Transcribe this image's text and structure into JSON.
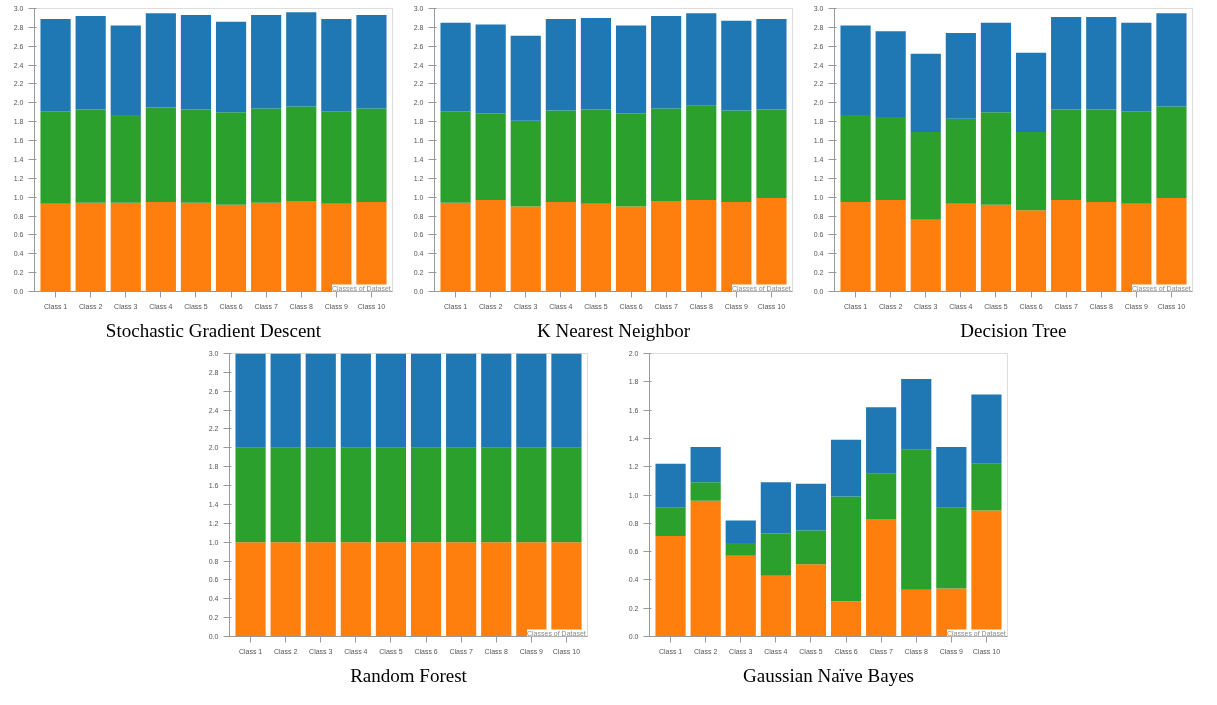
{
  "chart_data": [
    {
      "type": "bar",
      "title": "Stochastic Gradient Descent",
      "stacked": true,
      "categories": [
        "Class 1",
        "Class 2",
        "Class 3",
        "Class 4",
        "Class 5",
        "Class 6",
        "Class 7",
        "Class 8",
        "Class 9",
        "Class 10"
      ],
      "ylim": [
        0,
        3.0
      ],
      "yticks": [
        {
          "value": 0,
          "label": "0.0"
        },
        {
          "value": 0.2,
          "label": "0.2"
        },
        {
          "value": 0.4,
          "label": "0.4"
        },
        {
          "value": 0.6,
          "label": "0.6"
        },
        {
          "value": 0.8,
          "label": "0.8"
        },
        {
          "value": 1.0,
          "label": "1.0"
        },
        {
          "value": 1.2,
          "label": "1.2"
        },
        {
          "value": 1.4,
          "label": "1.4"
        },
        {
          "value": 1.6,
          "label": "1.6"
        },
        {
          "value": 1.8,
          "label": "1.8"
        },
        {
          "value": 2.0,
          "label": "2.0"
        },
        {
          "value": 2.2,
          "label": "2.2"
        },
        {
          "value": 2.4,
          "label": "2.4"
        },
        {
          "value": 2.6,
          "label": "2.6"
        },
        {
          "value": 2.8,
          "label": "2.8"
        },
        {
          "value": 3.0,
          "label": "3.0"
        }
      ],
      "annotations": [
        "Classes of Dataset"
      ],
      "series": [
        {
          "color": "#ff7f0e",
          "values": [
            0.93,
            0.94,
            0.94,
            0.95,
            0.94,
            0.92,
            0.94,
            0.96,
            0.93,
            0.95
          ]
        },
        {
          "color": "#2ca02c",
          "values": [
            0.98,
            0.99,
            0.93,
            1.0,
            0.99,
            0.98,
            1.0,
            1.0,
            0.98,
            0.99
          ]
        },
        {
          "color": "#1f77b4",
          "values": [
            0.98,
            0.99,
            0.95,
            1.0,
            1.0,
            0.96,
            0.99,
            1.0,
            0.98,
            0.99
          ]
        }
      ]
    },
    {
      "type": "bar",
      "title": "K Nearest Neighbor",
      "stacked": true,
      "categories": [
        "Class 1",
        "Class 2",
        "Class 3",
        "Class 4",
        "Class 5",
        "Class 6",
        "Class 7",
        "Class 8",
        "Class 9",
        "Class 10"
      ],
      "ylim": [
        0,
        3.0
      ],
      "yticks": [
        {
          "value": 0,
          "label": "0.0"
        },
        {
          "value": 0.2,
          "label": "0.2"
        },
        {
          "value": 0.4,
          "label": "0.4"
        },
        {
          "value": 0.6,
          "label": "0.6"
        },
        {
          "value": 0.8,
          "label": "0.8"
        },
        {
          "value": 1.0,
          "label": "1.0"
        },
        {
          "value": 1.2,
          "label": "1.2"
        },
        {
          "value": 1.4,
          "label": "1.4"
        },
        {
          "value": 1.6,
          "label": "1.6"
        },
        {
          "value": 1.8,
          "label": "1.8"
        },
        {
          "value": 2.0,
          "label": "2.0"
        },
        {
          "value": 2.2,
          "label": "2.2"
        },
        {
          "value": 2.4,
          "label": "2.4"
        },
        {
          "value": 2.6,
          "label": "2.6"
        },
        {
          "value": 2.8,
          "label": "2.8"
        },
        {
          "value": 3.0,
          "label": "3.0"
        }
      ],
      "annotations": [
        "Classes of Dataset"
      ],
      "series": [
        {
          "color": "#ff7f0e",
          "values": [
            0.94,
            0.97,
            0.9,
            0.95,
            0.93,
            0.9,
            0.96,
            0.97,
            0.95,
            0.99
          ]
        },
        {
          "color": "#2ca02c",
          "values": [
            0.97,
            0.92,
            0.91,
            0.97,
            1.0,
            0.99,
            0.98,
            1.0,
            0.97,
            0.94
          ]
        },
        {
          "color": "#1f77b4",
          "values": [
            0.94,
            0.94,
            0.9,
            0.97,
            0.97,
            0.93,
            0.98,
            0.98,
            0.95,
            0.96
          ]
        }
      ]
    },
    {
      "type": "bar",
      "title": "Decision Tree",
      "stacked": true,
      "categories": [
        "Class 1",
        "Class 2",
        "Class 3",
        "Class 4",
        "Class 5",
        "Class 6",
        "Class 7",
        "Class 8",
        "Class 9",
        "Class 10"
      ],
      "ylim": [
        0,
        3.0
      ],
      "yticks": [
        {
          "value": 0,
          "label": "0.0"
        },
        {
          "value": 0.2,
          "label": "0.2"
        },
        {
          "value": 0.4,
          "label": "0.4"
        },
        {
          "value": 0.6,
          "label": "0.6"
        },
        {
          "value": 0.8,
          "label": "0.8"
        },
        {
          "value": 1.0,
          "label": "1.0"
        },
        {
          "value": 1.2,
          "label": "1.2"
        },
        {
          "value": 1.4,
          "label": "1.4"
        },
        {
          "value": 1.6,
          "label": "1.6"
        },
        {
          "value": 1.8,
          "label": "1.8"
        },
        {
          "value": 2.0,
          "label": "2.0"
        },
        {
          "value": 2.2,
          "label": "2.2"
        },
        {
          "value": 2.4,
          "label": "2.4"
        },
        {
          "value": 2.6,
          "label": "2.6"
        },
        {
          "value": 2.8,
          "label": "2.8"
        },
        {
          "value": 3.0,
          "label": "3.0"
        }
      ],
      "annotations": [
        "Classes of Dataset"
      ],
      "series": [
        {
          "color": "#ff7f0e",
          "values": [
            0.95,
            0.97,
            0.76,
            0.93,
            0.92,
            0.86,
            0.97,
            0.95,
            0.93,
            0.99
          ]
        },
        {
          "color": "#2ca02c",
          "values": [
            0.92,
            0.88,
            0.93,
            0.9,
            0.98,
            0.83,
            0.96,
            0.98,
            0.98,
            0.97
          ]
        },
        {
          "color": "#1f77b4",
          "values": [
            0.95,
            0.91,
            0.83,
            0.91,
            0.95,
            0.84,
            0.98,
            0.98,
            0.94,
            0.99
          ]
        }
      ]
    },
    {
      "type": "bar",
      "title": "Random Forest",
      "stacked": true,
      "categories": [
        "Class 1",
        "Class 2",
        "Class 3",
        "Class 4",
        "Class 5",
        "Class 6",
        "Class 7",
        "Class 8",
        "Class 9",
        "Class 10"
      ],
      "ylim": [
        0,
        3.0
      ],
      "yticks": [
        {
          "value": 0,
          "label": "0.0"
        },
        {
          "value": 0.2,
          "label": "0.2"
        },
        {
          "value": 0.4,
          "label": "0.4"
        },
        {
          "value": 0.6,
          "label": "0.6"
        },
        {
          "value": 0.8,
          "label": "0.8"
        },
        {
          "value": 1.0,
          "label": "1.0"
        },
        {
          "value": 1.2,
          "label": "1.2"
        },
        {
          "value": 1.4,
          "label": "1.4"
        },
        {
          "value": 1.6,
          "label": "1.6"
        },
        {
          "value": 1.8,
          "label": "1.8"
        },
        {
          "value": 2.0,
          "label": "2.0"
        },
        {
          "value": 2.2,
          "label": "2.2"
        },
        {
          "value": 2.4,
          "label": "2.4"
        },
        {
          "value": 2.6,
          "label": "2.6"
        },
        {
          "value": 2.8,
          "label": "2.8"
        },
        {
          "value": 3.0,
          "label": "3.0"
        }
      ],
      "annotations": [
        "Classes of Dataset"
      ],
      "series": [
        {
          "color": "#ff7f0e",
          "values": [
            1.0,
            1.0,
            1.0,
            1.0,
            1.0,
            1.0,
            1.0,
            1.0,
            1.0,
            1.0
          ]
        },
        {
          "color": "#2ca02c",
          "values": [
            1.0,
            1.0,
            1.0,
            1.0,
            1.0,
            1.0,
            1.0,
            1.0,
            1.0,
            1.0
          ]
        },
        {
          "color": "#1f77b4",
          "values": [
            1.0,
            1.0,
            1.0,
            1.0,
            1.0,
            1.0,
            1.0,
            1.0,
            1.0,
            1.0
          ]
        }
      ]
    },
    {
      "type": "bar",
      "title": "Gaussian Naïve Bayes",
      "stacked": true,
      "categories": [
        "Class 1",
        "Class 2",
        "Class 3",
        "Class 4",
        "Class 5",
        "Class 6",
        "Class 7",
        "Class 8",
        "Class 9",
        "Class 10"
      ],
      "ylim": [
        0,
        2.0
      ],
      "yticks": [
        {
          "value": 0,
          "label": "0.0"
        },
        {
          "value": 0.2,
          "label": "0.2"
        },
        {
          "value": 0.4,
          "label": "0.4"
        },
        {
          "value": 0.6,
          "label": "0.6"
        },
        {
          "value": 0.8,
          "label": "0.8"
        },
        {
          "value": 1.0,
          "label": "1.0"
        },
        {
          "value": 1.2,
          "label": "1.2"
        },
        {
          "value": 1.4,
          "label": "1.4"
        },
        {
          "value": 1.6,
          "label": "1.6"
        },
        {
          "value": 1.8,
          "label": "1.8"
        },
        {
          "value": 2.0,
          "label": "2.0"
        }
      ],
      "annotations": [
        "Classes of Dataset"
      ],
      "series": [
        {
          "color": "#ff7f0e",
          "values": [
            0.71,
            0.96,
            0.57,
            0.43,
            0.51,
            0.25,
            0.83,
            0.33,
            0.34,
            0.89
          ]
        },
        {
          "color": "#2ca02c",
          "values": [
            0.2,
            0.13,
            0.09,
            0.3,
            0.24,
            0.74,
            0.32,
            0.99,
            0.57,
            0.33
          ]
        },
        {
          "color": "#1f77b4",
          "values": [
            0.31,
            0.25,
            0.16,
            0.36,
            0.33,
            0.4,
            0.47,
            0.5,
            0.43,
            0.49
          ]
        }
      ]
    }
  ]
}
